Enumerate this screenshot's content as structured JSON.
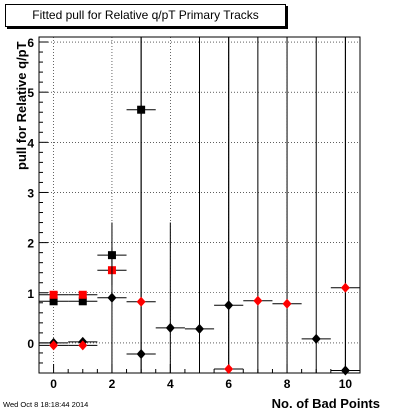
{
  "chart_data": {
    "type": "scatter",
    "title": "Fitted pull for Relative q/pT Primary Tracks",
    "xlabel": "No. of Bad Points",
    "ylabel": "pull for Relative q/pT",
    "xlim": [
      -0.5,
      10.5
    ],
    "ylim": [
      -0.6,
      6.1
    ],
    "x_ticks": [
      0,
      2,
      4,
      6,
      8,
      10
    ],
    "y_ticks": [
      0,
      1,
      2,
      3,
      4,
      5,
      6
    ],
    "grid": true,
    "footer": "Wed Oct  8 18:18:44 2014",
    "series": [
      {
        "marker": "square",
        "color": "#000000",
        "points": [
          {
            "x": 0,
            "y": 0.83,
            "err": 0.05
          },
          {
            "x": 1,
            "y": 0.83,
            "err": 0.05
          },
          {
            "x": 2,
            "y": 1.75,
            "err": 0.15
          },
          {
            "x": 3,
            "y": 4.65,
            "err": 0.1
          }
        ]
      },
      {
        "marker": "square",
        "color": "#ff0000",
        "points": [
          {
            "x": 0,
            "y": 0.96,
            "err": 0.05
          },
          {
            "x": 1,
            "y": 0.96,
            "err": 0.05
          },
          {
            "x": 2,
            "y": 1.45,
            "err": 0.3
          }
        ]
      },
      {
        "marker": "diamond",
        "color": "#000000",
        "points": [
          {
            "x": 0,
            "y": 0.0,
            "err": 0.05
          },
          {
            "x": 1,
            "y": 0.02,
            "err": 0.05
          },
          {
            "x": 2,
            "y": 0.9,
            "err": 1.5
          },
          {
            "x": 3,
            "y": -0.22,
            "err": 8
          },
          {
            "x": 4,
            "y": 0.3,
            "err": 2.1
          },
          {
            "x": 5,
            "y": 0.28,
            "err": 8
          },
          {
            "x": 6,
            "y": 0.75,
            "err": 8
          },
          {
            "x": 9,
            "y": 0.08,
            "err": 8
          },
          {
            "x": 10,
            "y": -0.55,
            "err": 8
          }
        ]
      },
      {
        "marker": "diamond",
        "color": "#ff0000",
        "points": [
          {
            "x": 0,
            "y": -0.05,
            "err": 0.05
          },
          {
            "x": 1,
            "y": -0.05,
            "err": 0.05
          },
          {
            "x": 3,
            "y": 0.82,
            "err": 8
          },
          {
            "x": 6,
            "y": -0.52,
            "err": 8
          },
          {
            "x": 7,
            "y": 0.84,
            "err": 8
          },
          {
            "x": 8,
            "y": 0.78,
            "err": 8
          },
          {
            "x": 10,
            "y": 1.1,
            "err": 8
          }
        ]
      }
    ]
  }
}
